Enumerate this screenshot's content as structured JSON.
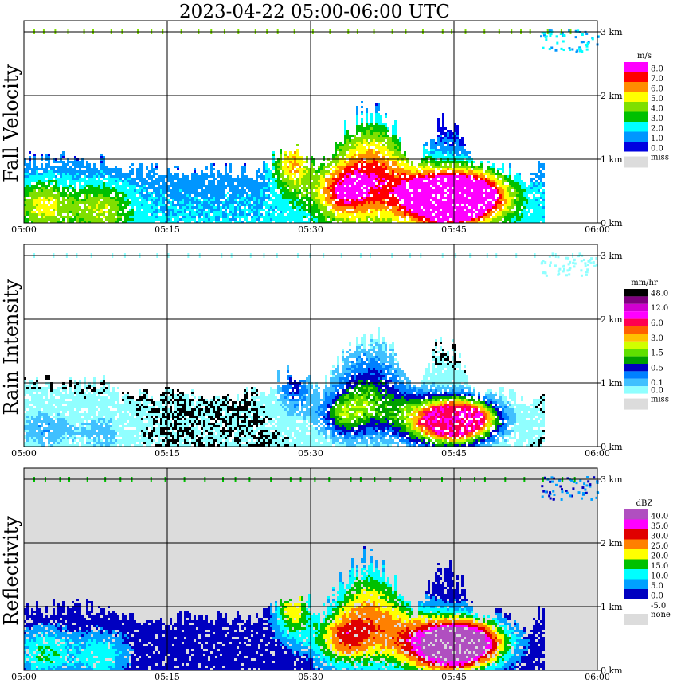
{
  "title": "2023-04-22  05:00-06:00 UTC",
  "x_ticks": [
    "05:00",
    "05:15",
    "05:30",
    "05:45",
    "06:00"
  ],
  "y_ticks": [
    "0 km",
    "1 km",
    "2 km",
    "3 km"
  ],
  "panels": [
    {
      "name": "Fall Velocity",
      "unit": "m/s",
      "legend": [
        {
          "label": "8.0",
          "color": "#ff00ff"
        },
        {
          "label": "7.0",
          "color": "#ff0000"
        },
        {
          "label": "6.0",
          "color": "#ff8c00"
        },
        {
          "label": "5.0",
          "color": "#ffff00"
        },
        {
          "label": "4.0",
          "color": "#7fdf00"
        },
        {
          "label": "3.0",
          "color": "#00c000"
        },
        {
          "label": "2.0",
          "color": "#00ffff"
        },
        {
          "label": "1.0",
          "color": "#0096ff"
        },
        {
          "label": "0.0",
          "color": "#0000e0"
        }
      ],
      "miss_label": "miss",
      "miss_color": "#dcdcdc",
      "background": "#ffffff"
    },
    {
      "name": "Rain Intensity",
      "unit": "mm/hr",
      "legend": [
        {
          "label": "48.0",
          "color": "#000000"
        },
        {
          "label": "",
          "color": "#800080"
        },
        {
          "label": "12.0",
          "color": "#d000d0"
        },
        {
          "label": "",
          "color": "#ff00ff"
        },
        {
          "label": "6.0",
          "color": "#ff0050"
        },
        {
          "label": "",
          "color": "#ff6000"
        },
        {
          "label": "3.0",
          "color": "#ffc000"
        },
        {
          "label": "",
          "color": "#d0ff00"
        },
        {
          "label": "1.5",
          "color": "#60e000"
        },
        {
          "label": "",
          "color": "#00a000"
        },
        {
          "label": "0.5",
          "color": "#0000c0"
        },
        {
          "label": "",
          "color": "#0080ff"
        },
        {
          "label": "0.1",
          "color": "#40c0ff"
        },
        {
          "label": "0.0",
          "color": "#90ffff"
        }
      ],
      "miss_label": "miss",
      "miss_color": "#dcdcdc",
      "background": "#ffffff"
    },
    {
      "name": "Reflectivity",
      "unit": "dBZ",
      "legend": [
        {
          "label": "40.0",
          "color": "#b04fc0"
        },
        {
          "label": "35.0",
          "color": "#ff00ff"
        },
        {
          "label": "30.0",
          "color": "#e00000"
        },
        {
          "label": "25.0",
          "color": "#ff8000"
        },
        {
          "label": "20.0",
          "color": "#ffff00"
        },
        {
          "label": "15.0",
          "color": "#00c000"
        },
        {
          "label": "10.0",
          "color": "#00ffff"
        },
        {
          "label": "5.0",
          "color": "#00a0ff"
        },
        {
          "label": "0.0",
          "color": "#0000c0"
        },
        {
          "label": "-5.0",
          "color": "#ffffff"
        }
      ],
      "miss_label": "none",
      "miss_color": "#dcdcdc",
      "background": "#dcdcdc"
    }
  ],
  "chart_data": {
    "type": "heatmap",
    "title": "2023-04-22  05:00-06:00 UTC",
    "x_range": [
      "05:00",
      "06:00"
    ],
    "y_range_km": [
      0,
      3.2
    ],
    "panels": [
      "Fall Velocity",
      "Rain Intensity",
      "Reflectivity"
    ],
    "features": {
      "echo_layer_top_km": 1.8,
      "surface_top_at_start_km": 1.0,
      "upper_speckles_km": 3.0,
      "rain_max_time": "05:48",
      "rain_max_height_km": 0.6,
      "reflectivity_core_dbz": 30.0
    }
  }
}
